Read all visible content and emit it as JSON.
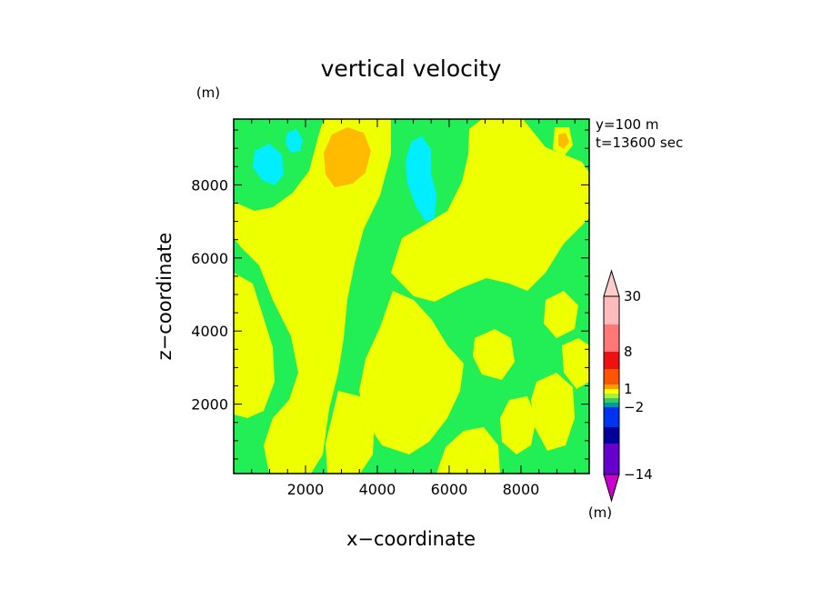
{
  "chart_data": {
    "type": "heatmap",
    "title": "vertical velocity",
    "xlabel": "x−coordinate",
    "ylabel": "z−coordinate",
    "x_unit": "(m)",
    "y_unit": "(m)",
    "xlim": [
      0,
      9900
    ],
    "ylim": [
      100,
      9800
    ],
    "x_ticks": [
      {
        "value": 2000,
        "label": "2000"
      },
      {
        "value": 4000,
        "label": "4000"
      },
      {
        "value": 6000,
        "label": "6000"
      },
      {
        "value": 8000,
        "label": "8000"
      }
    ],
    "y_ticks": [
      {
        "value": 2000,
        "label": "2000"
      },
      {
        "value": 4000,
        "label": "4000"
      },
      {
        "value": 6000,
        "label": "6000"
      },
      {
        "value": 8000,
        "label": "8000"
      }
    ],
    "annotations": [
      "y=100  m",
      "t=13600  sec"
    ],
    "colorbar": {
      "unit": "(m)",
      "levels": [
        -30,
        -14,
        -8,
        -4,
        -2,
        -1,
        -0.5,
        0.5,
        1,
        2,
        4,
        8,
        14,
        30
      ],
      "colors": [
        "#cc00cc",
        "#8800aa",
        "#6600cc",
        "#000099",
        "#0033ee",
        "#009999",
        "#33cc66",
        "#aaee44",
        "#ffff00",
        "#ff9900",
        "#ff5500",
        "#ee1111",
        "#ff7777",
        "#ffbbbb",
        "#ffcccc"
      ],
      "labels": [
        {
          "level": 30,
          "label": "30"
        },
        {
          "level": 8,
          "label": "8"
        },
        {
          "level": 1,
          "label": "1"
        },
        {
          "level": -2,
          "label": "−2"
        },
        {
          "level": -14,
          "label": "−14"
        }
      ]
    },
    "field_colors": {
      "green": "#22ee55",
      "yellow": "#eeff00",
      "cyan": "#00eeff",
      "orange": "#ffbb00"
    }
  }
}
